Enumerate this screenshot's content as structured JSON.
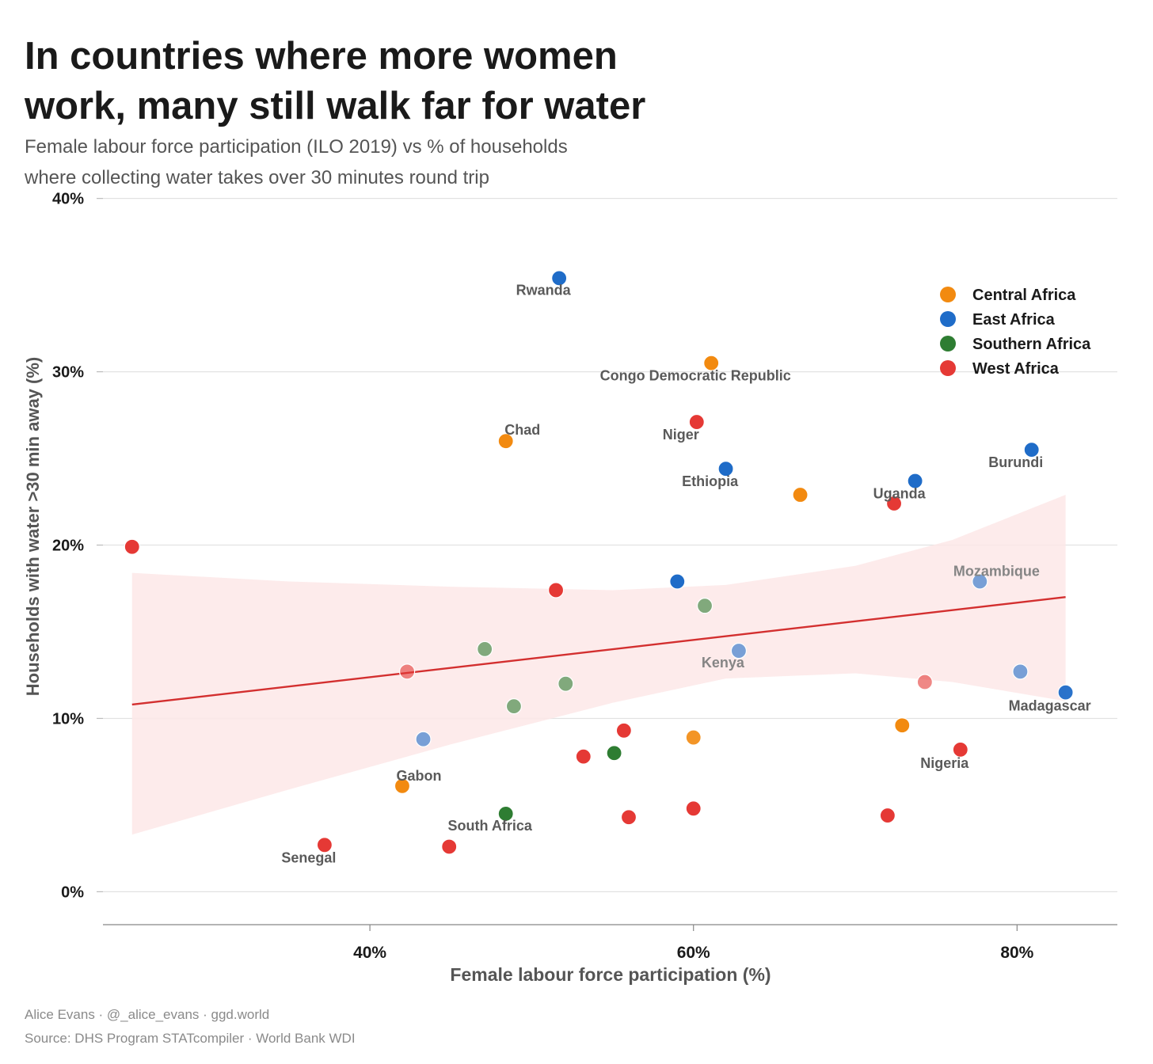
{
  "title_lines": [
    "In countries where more women",
    "work, many still walk far for water"
  ],
  "subtitle_lines": [
    "Female labour force participation (ILO 2019) vs % of households",
    "where collecting water takes over 30 minutes round trip"
  ],
  "caption": [
    "Alice Evans · @_alice_evans · ggd.world",
    "Source: DHS Program STATcompiler · World Bank WDI"
  ],
  "colors": {
    "Central Africa": "#f28a10",
    "East Africa": "#1f6cc8",
    "Southern Africa": "#2e7d32",
    "West Africa": "#e53935",
    "trend": "#d32f2f",
    "band": "#fde7e7"
  },
  "chart_data": {
    "type": "scatter",
    "xlabel": "Female labour force participation (%)",
    "ylabel": "Households with water >30 min away (%)",
    "xlim": [
      23.5,
      86.2
    ],
    "ylim": [
      -1.9,
      41.4
    ],
    "x_ticks": [
      {
        "value": 40,
        "label": "40%"
      },
      {
        "value": 60,
        "label": "60%"
      },
      {
        "value": 80,
        "label": "80%"
      }
    ],
    "y_ticks": [
      {
        "value": 0,
        "label": "0%"
      },
      {
        "value": 10,
        "label": "10%"
      },
      {
        "value": 20,
        "label": "20%"
      },
      {
        "value": 30,
        "label": "30%"
      },
      {
        "value": 40,
        "label": "40%"
      }
    ],
    "grid": "horizontal",
    "legend_position": "top-right",
    "legend": [
      "Central Africa",
      "East Africa",
      "Southern Africa",
      "West Africa"
    ],
    "points": [
      {
        "label": "Rwanda",
        "region": "East Africa",
        "x": 51.7,
        "y": 35.4,
        "opacity": 1.0
      },
      {
        "label": "Congo Democratic Republic",
        "region": "Central Africa",
        "x": 61.1,
        "y": 30.5,
        "opacity": 1.0
      },
      {
        "label": "Chad",
        "region": "Central Africa",
        "x": 48.4,
        "y": 26.0,
        "opacity": 1.0
      },
      {
        "label": "Niger",
        "region": "West Africa",
        "x": 60.2,
        "y": 27.1,
        "opacity": 1.0
      },
      {
        "label": "Ethiopia",
        "region": "East Africa",
        "x": 62.0,
        "y": 24.4,
        "opacity": 1.0
      },
      {
        "label": "",
        "region": "Central Africa",
        "x": 66.6,
        "y": 22.9,
        "opacity": 1.0
      },
      {
        "label": "Uganda",
        "region": "East Africa",
        "x": 73.7,
        "y": 23.7,
        "opacity": 1.0
      },
      {
        "label": "",
        "region": "West Africa",
        "x": 72.4,
        "y": 22.4,
        "opacity": 1.0
      },
      {
        "label": "Burundi",
        "region": "East Africa",
        "x": 80.9,
        "y": 25.5,
        "opacity": 1.0
      },
      {
        "label": "",
        "region": "West Africa",
        "x": 25.3,
        "y": 19.9,
        "opacity": 1.0
      },
      {
        "label": "Mozambique",
        "region": "East Africa",
        "x": 77.7,
        "y": 17.9,
        "opacity": 0.6
      },
      {
        "label": "",
        "region": "West Africa",
        "x": 51.5,
        "y": 17.4,
        "opacity": 1.0
      },
      {
        "label": "",
        "region": "East Africa",
        "x": 59.0,
        "y": 17.9,
        "opacity": 1.0
      },
      {
        "label": "",
        "region": "Southern Africa",
        "x": 60.7,
        "y": 16.5,
        "opacity": 0.6
      },
      {
        "label": "",
        "region": "Southern Africa",
        "x": 47.1,
        "y": 14.0,
        "opacity": 0.6
      },
      {
        "label": "Kenya",
        "region": "East Africa",
        "x": 62.8,
        "y": 13.9,
        "opacity": 0.6
      },
      {
        "label": "",
        "region": "West Africa",
        "x": 42.3,
        "y": 12.7,
        "opacity": 0.6
      },
      {
        "label": "",
        "region": "Southern Africa",
        "x": 52.1,
        "y": 12.0,
        "opacity": 0.6
      },
      {
        "label": "",
        "region": "West Africa",
        "x": 74.3,
        "y": 12.1,
        "opacity": 0.6
      },
      {
        "label": "",
        "region": "East Africa",
        "x": 80.2,
        "y": 12.7,
        "opacity": 0.6
      },
      {
        "label": "Madagascar",
        "region": "East Africa",
        "x": 83.0,
        "y": 11.5,
        "opacity": 0.95
      },
      {
        "label": "",
        "region": "Southern Africa",
        "x": 48.9,
        "y": 10.7,
        "opacity": 0.6
      },
      {
        "label": "",
        "region": "East Africa",
        "x": 43.3,
        "y": 8.8,
        "opacity": 0.6
      },
      {
        "label": "",
        "region": "Central Africa",
        "x": 60.0,
        "y": 8.9,
        "opacity": 0.9
      },
      {
        "label": "",
        "region": "West Africa",
        "x": 55.7,
        "y": 9.3,
        "opacity": 1.0
      },
      {
        "label": "",
        "region": "Central Africa",
        "x": 72.9,
        "y": 9.6,
        "opacity": 1.0
      },
      {
        "label": "",
        "region": "West Africa",
        "x": 53.2,
        "y": 7.8,
        "opacity": 1.0
      },
      {
        "label": "",
        "region": "Southern Africa",
        "x": 55.1,
        "y": 8.0,
        "opacity": 1.0
      },
      {
        "label": "Nigeria",
        "region": "West Africa",
        "x": 76.5,
        "y": 8.2,
        "opacity": 1.0
      },
      {
        "label": "Gabon",
        "region": "Central Africa",
        "x": 42.0,
        "y": 6.1,
        "opacity": 1.0
      },
      {
        "label": "South Africa",
        "region": "Southern Africa",
        "x": 48.4,
        "y": 4.5,
        "opacity": 1.0
      },
      {
        "label": "",
        "region": "West Africa",
        "x": 56.0,
        "y": 4.3,
        "opacity": 1.0
      },
      {
        "label": "",
        "region": "West Africa",
        "x": 60.0,
        "y": 4.8,
        "opacity": 1.0
      },
      {
        "label": "",
        "region": "West Africa",
        "x": 72.0,
        "y": 4.4,
        "opacity": 1.0
      },
      {
        "label": "Senegal",
        "region": "West Africa",
        "x": 37.2,
        "y": 2.7,
        "opacity": 1.0
      },
      {
        "label": "",
        "region": "West Africa",
        "x": 44.9,
        "y": 2.6,
        "opacity": 1.0
      }
    ],
    "trend_line": {
      "x": [
        25.3,
        83.0
      ],
      "y": [
        10.8,
        17.0
      ]
    },
    "confidence_band": {
      "x": [
        25.3,
        35.0,
        45.0,
        55.0,
        62.0,
        70.0,
        76.0,
        83.0
      ],
      "upper": [
        18.4,
        17.9,
        17.6,
        17.4,
        17.7,
        18.8,
        20.3,
        22.9
      ],
      "lower": [
        3.3,
        5.9,
        8.5,
        10.9,
        12.3,
        12.6,
        12.1,
        11.0
      ]
    }
  }
}
